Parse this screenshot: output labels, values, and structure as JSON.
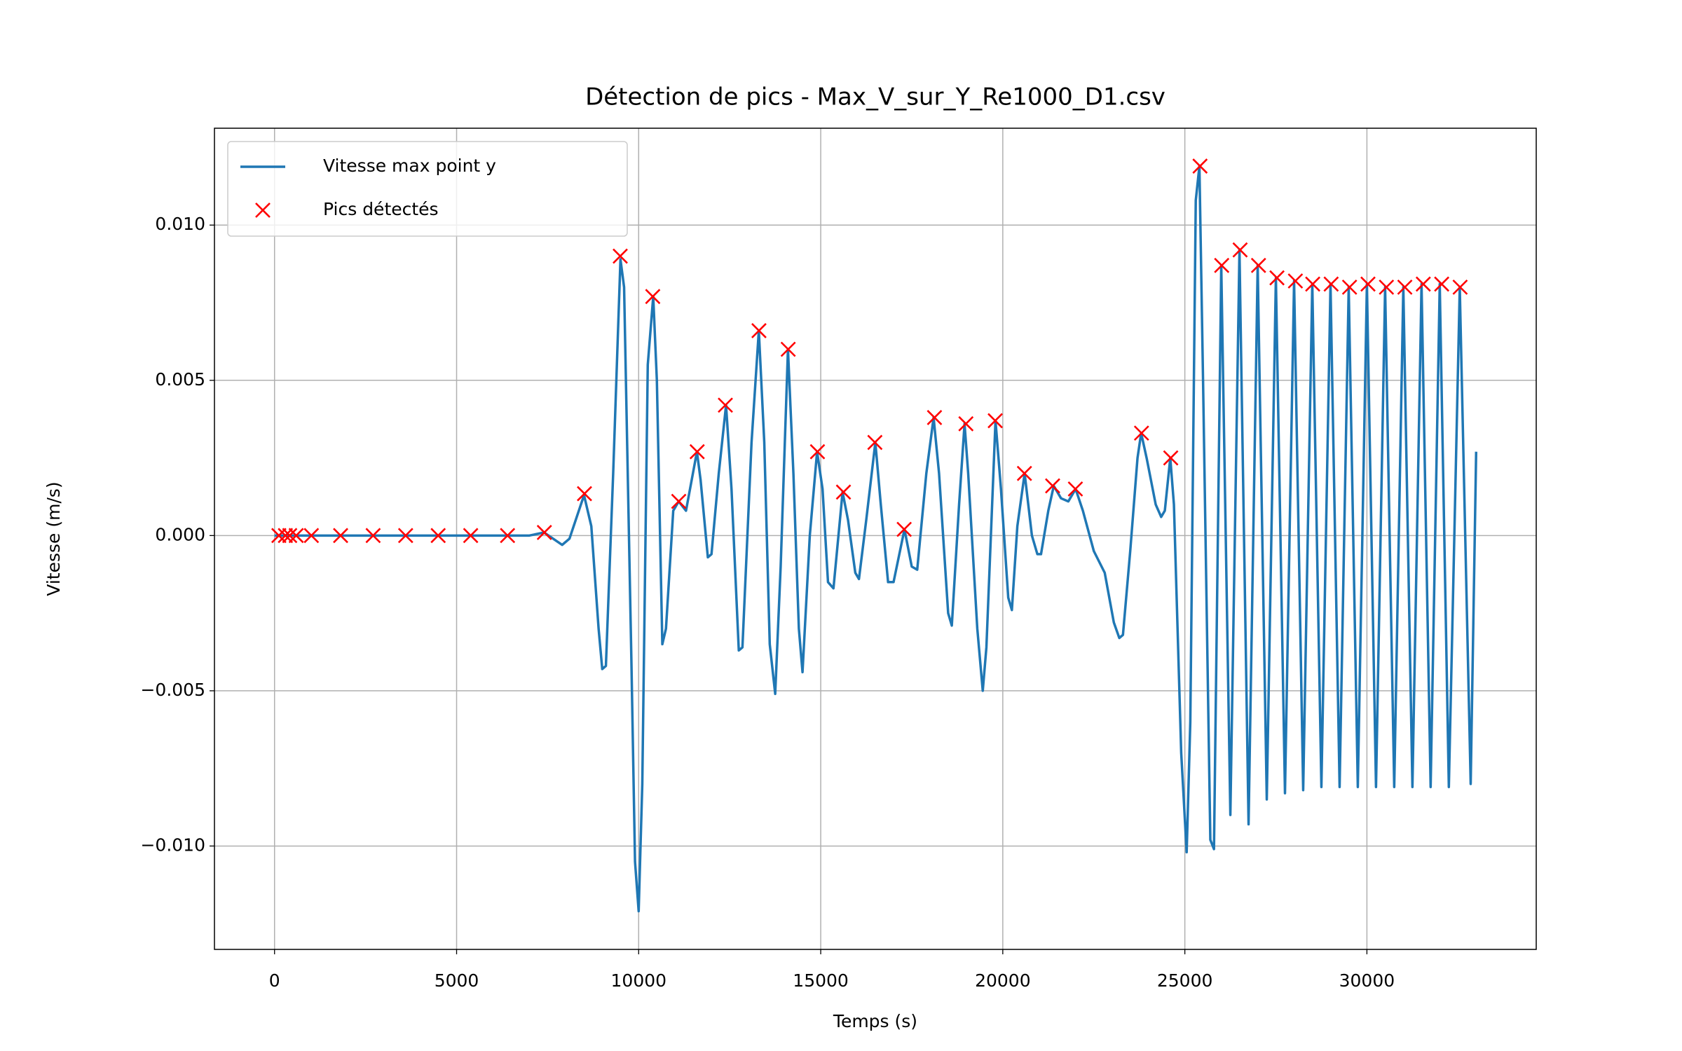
{
  "chart_data": {
    "type": "line",
    "title": "Détection de pics - Max_V_sur_Y_Re1000_D1.csv",
    "xlabel": "Temps (s)",
    "ylabel": "Vitesse (m/s)",
    "xlim": [
      -1650,
      34650
    ],
    "ylim": [
      -0.01333,
      0.01312
    ],
    "xticks": [
      0,
      5000,
      10000,
      15000,
      20000,
      25000,
      30000
    ],
    "yticks": [
      {
        "value": -0.01,
        "label": "−0.010"
      },
      {
        "value": -0.005,
        "label": "−0.005"
      },
      {
        "value": 0,
        "label": "0.000"
      },
      {
        "value": 0.005,
        "label": "0.005"
      },
      {
        "value": 0.01,
        "label": "0.010"
      }
    ],
    "grid": true,
    "legend": "upper left",
    "series": [
      {
        "name": "Vitesse max point y",
        "color": "#1f77b4",
        "x": [
          0,
          7000,
          7400,
          7900,
          8100,
          8500,
          8700,
          8900,
          9000,
          9100,
          9300,
          9500,
          9600,
          9800,
          9900,
          10000,
          10100,
          10250,
          10400,
          10500,
          10650,
          10750,
          10950,
          11100,
          11300,
          11600,
          11700,
          11900,
          12000,
          12200,
          12400,
          12550,
          12750,
          12850,
          13100,
          13300,
          13450,
          13600,
          13750,
          13900,
          14100,
          14250,
          14400,
          14500,
          14700,
          14900,
          15050,
          15200,
          15350,
          15600,
          15750,
          15950,
          16050,
          16250,
          16500,
          16650,
          16850,
          17000,
          17300,
          17500,
          17650,
          17900,
          18100,
          18250,
          18500,
          18600,
          18800,
          18950,
          19050,
          19300,
          19450,
          19550,
          19800,
          19950,
          20150,
          20250,
          20400,
          20600,
          20800,
          20950,
          21050,
          21250,
          21400,
          21600,
          21800,
          22000,
          22200,
          22500,
          22800,
          23050,
          23200,
          23300,
          23500,
          23700,
          23800,
          23950,
          24200,
          24350,
          24450,
          24600,
          24700,
          24900,
          25050,
          25150,
          25300,
          25400,
          25500,
          25700,
          25800,
          26000,
          26250,
          26500,
          26750,
          27000,
          27250,
          27500,
          27750,
          28000,
          28250,
          28500,
          28750,
          29000,
          29250,
          29500,
          29750,
          30000,
          30250,
          30500,
          30750,
          31000,
          31250,
          31500,
          31750,
          32000,
          32250,
          32550,
          32850,
          33000
        ],
        "values": [
          0,
          0,
          0.0001,
          -0.0003,
          -0.0001,
          0.0013,
          0.0003,
          -0.003,
          -0.0043,
          -0.0042,
          0.002,
          0.0089,
          0.008,
          -0.004,
          -0.0105,
          -0.0121,
          -0.008,
          0.0055,
          0.0077,
          0.005,
          -0.0035,
          -0.003,
          0.0008,
          0.0011,
          0.0008,
          0.0027,
          0.0018,
          -0.0007,
          -0.0006,
          0.002,
          0.0042,
          0.0015,
          -0.0037,
          -0.0036,
          0.003,
          0.0066,
          0.003,
          -0.0035,
          -0.0051,
          -0.001,
          0.006,
          0.002,
          -0.003,
          -0.0044,
          0,
          0.0027,
          0.0015,
          -0.0015,
          -0.0017,
          0.0014,
          0.0005,
          -0.0012,
          -0.0014,
          0.0005,
          0.003,
          0.001,
          -0.0015,
          -0.0015,
          0.0002,
          -0.001,
          -0.0011,
          0.002,
          0.0038,
          0.002,
          -0.0025,
          -0.0029,
          0.001,
          0.0036,
          0.002,
          -0.003,
          -0.005,
          -0.0036,
          0.0037,
          0.0015,
          -0.002,
          -0.0024,
          0.0003,
          0.002,
          0,
          -0.0006,
          -0.0006,
          0.0008,
          0.0016,
          0.0012,
          0.0011,
          0.0015,
          0.0008,
          -0.0005,
          -0.0012,
          -0.0028,
          -0.0033,
          -0.0032,
          -0.0005,
          0.0025,
          0.0033,
          0.0025,
          0.001,
          0.0006,
          0.0008,
          0.0025,
          0.001,
          -0.007,
          -0.0102,
          -0.006,
          0.0108,
          0.0119,
          0.005,
          -0.0098,
          -0.0101,
          0.0087,
          -0.009,
          0.0092,
          -0.0093,
          0.0087,
          -0.0085,
          0.0083,
          -0.0083,
          0.0082,
          -0.0082,
          0.0081,
          -0.0081,
          0.0081,
          -0.0081,
          0.008,
          -0.0081,
          0.0081,
          -0.0081,
          0.008,
          -0.0081,
          0.008,
          -0.0081,
          0.0081,
          -0.0081,
          0.0081,
          -0.0081,
          0.008,
          -0.008,
          0.0027
        ]
      },
      {
        "name": "Pics détectés",
        "color": "#ff0000",
        "marker": "x",
        "x": [
          119,
          298,
          417,
          595,
          1012,
          1815,
          2708,
          3601,
          4494,
          5387,
          6399,
          7411,
          8512,
          9494,
          10387,
          11101,
          11607,
          12381,
          13304,
          14107,
          14911,
          15625,
          16488,
          17292,
          18125,
          18988,
          19792,
          20595,
          21369,
          21994,
          23810,
          24613,
          25417,
          26012,
          26518,
          27024,
          27530,
          28036,
          28512,
          29018,
          29524,
          30030,
          30536,
          31042,
          31548,
          32054,
          32560
        ],
        "values": [
          0,
          0,
          0,
          0,
          0,
          0,
          0,
          0,
          0,
          0,
          0,
          0.0001,
          0.00135,
          0.009,
          0.0077,
          0.0011,
          0.0027,
          0.0042,
          0.0066,
          0.006,
          0.0027,
          0.0014,
          0.003,
          0.0002,
          0.0038,
          0.0036,
          0.0037,
          0.002,
          0.0016,
          0.0015,
          0.0033,
          0.0025,
          0.0119,
          0.0087,
          0.0092,
          0.0087,
          0.0083,
          0.0082,
          0.0081,
          0.0081,
          0.008,
          0.0081,
          0.008,
          0.008,
          0.0081,
          0.0081,
          0.008
        ]
      }
    ]
  }
}
